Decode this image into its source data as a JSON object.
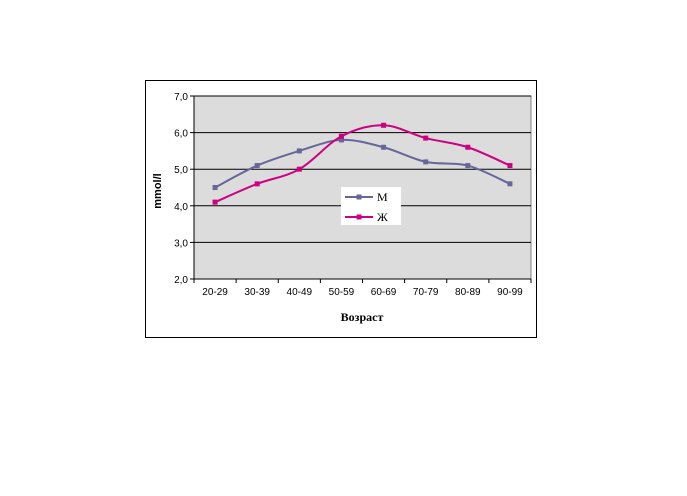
{
  "chart_data": {
    "type": "line",
    "categories": [
      "20-29",
      "30-39",
      "40-49",
      "50-59",
      "60-69",
      "70-79",
      "80-89",
      "90-99"
    ],
    "series": [
      {
        "name": "М",
        "values": [
          4.5,
          5.1,
          5.5,
          5.8,
          5.6,
          5.2,
          5.1,
          4.6
        ],
        "color": "#666699"
      },
      {
        "name": "Ж",
        "values": [
          4.1,
          4.6,
          5.0,
          5.9,
          6.2,
          5.85,
          5.6,
          5.1
        ],
        "color": "#cc0080"
      }
    ],
    "title": "",
    "xlabel": "Возраст",
    "ylabel": "mmol/l",
    "ylim": [
      2.0,
      7.0
    ],
    "yticks": [
      "2,0",
      "3,0",
      "4,0",
      "5,0",
      "6,0",
      "7,0"
    ],
    "grid": true,
    "legend": "center"
  }
}
